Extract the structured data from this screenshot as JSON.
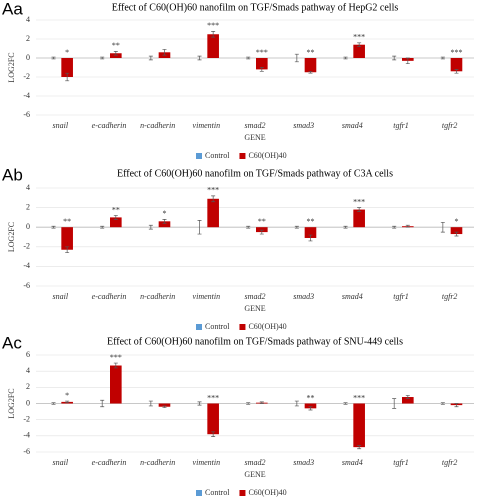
{
  "chart_data": [
    {
      "type": "bar",
      "panel_label": "Aa",
      "title": "Effect of C60(OH)60 nanofilm on TGF/Smads pathway of HepG2 cells",
      "x_label": "GENE",
      "y_label": "LOG2FC",
      "categories": [
        "snail",
        "e-cadherin",
        "n-cadherin",
        "vimentin",
        "smad2",
        "smad3",
        "smad4",
        "tgfr1",
        "tgfr2"
      ],
      "series": [
        {
          "name": "Control",
          "color": "#5b9bd5",
          "values": [
            0,
            0,
            0,
            0,
            0,
            0,
            0,
            0,
            0
          ],
          "errors": [
            0.1,
            0.1,
            0.2,
            0.2,
            0.1,
            0.4,
            0.1,
            0.2,
            0.1
          ]
        },
        {
          "name": "C60(OH)40",
          "color": "#c00000",
          "values": [
            -2.0,
            0.5,
            0.6,
            2.5,
            -1.2,
            -1.5,
            1.4,
            -0.3,
            -1.4
          ],
          "errors": [
            0.4,
            0.2,
            0.3,
            0.3,
            0.2,
            0.1,
            0.2,
            0.3,
            0.2
          ]
        }
      ],
      "annotations": [
        "*",
        "**",
        null,
        "***",
        "***",
        "**",
        "***",
        null,
        "***"
      ],
      "ylim": [
        -6,
        4
      ],
      "yticks": [
        -6,
        -4,
        -2,
        0,
        2,
        4
      ],
      "grid": true
    },
    {
      "type": "bar",
      "panel_label": "Ab",
      "title": "Effect of C60(OH)60 nanofilm on TGF/Smads pathway of C3A cells",
      "x_label": "GENE",
      "y_label": "LOG2FC",
      "categories": [
        "snail",
        "e-cadherin",
        "n-cadherin",
        "vimentin",
        "smad2",
        "smad3",
        "smad4",
        "tgfr1",
        "tgfr2"
      ],
      "series": [
        {
          "name": "Control",
          "color": "#5b9bd5",
          "values": [
            0,
            0,
            0,
            0,
            0,
            0,
            0,
            0,
            0
          ],
          "errors": [
            0.1,
            0.1,
            0.2,
            0.7,
            0.1,
            0.1,
            0.1,
            0.1,
            0.5
          ]
        },
        {
          "name": "C60(OH)40",
          "color": "#c00000",
          "values": [
            -2.3,
            1.0,
            0.6,
            2.9,
            -0.5,
            -1.1,
            1.8,
            0.1,
            -0.7
          ],
          "errors": [
            0.3,
            0.2,
            0.2,
            0.3,
            0.2,
            0.3,
            0.2,
            0.1,
            0.2
          ]
        }
      ],
      "annotations": [
        "**",
        "**",
        "*",
        "***",
        "**",
        "**",
        "***",
        null,
        "*"
      ],
      "ylim": [
        -6,
        4
      ],
      "yticks": [
        -6,
        -4,
        -2,
        0,
        2,
        4
      ],
      "grid": true
    },
    {
      "type": "bar",
      "panel_label": "Ac",
      "title": "Effect of C60(OH)60 nanofilm on TGF/Smads pathway of SNU-449 cells",
      "x_label": "GENE",
      "y_label": "LOG2FC",
      "categories": [
        "snail",
        "e-cadherin",
        "n-cadherin",
        "vimentin",
        "smad2",
        "smad3",
        "smad4",
        "tgfr1",
        "tgfr2"
      ],
      "series": [
        {
          "name": "Control",
          "color": "#5b9bd5",
          "values": [
            0,
            0,
            0,
            0,
            0,
            0,
            0,
            0,
            0
          ],
          "errors": [
            0.1,
            0.4,
            0.3,
            0.2,
            0.1,
            0.3,
            0.1,
            0.6,
            0.1
          ]
        },
        {
          "name": "C60(OH)40",
          "color": "#c00000",
          "values": [
            0.2,
            4.7,
            -0.4,
            -3.8,
            0.1,
            -0.6,
            -5.4,
            0.8,
            -0.2
          ],
          "errors": [
            0.1,
            0.3,
            0.1,
            0.3,
            0.1,
            0.2,
            0.2,
            0.2,
            0.2
          ]
        }
      ],
      "annotations": [
        "*",
        "***",
        null,
        "***",
        null,
        "**",
        "***",
        null,
        null
      ],
      "ylim": [
        -6,
        6
      ],
      "yticks": [
        -6,
        -4,
        -2,
        0,
        2,
        4,
        6
      ],
      "grid": true
    }
  ]
}
